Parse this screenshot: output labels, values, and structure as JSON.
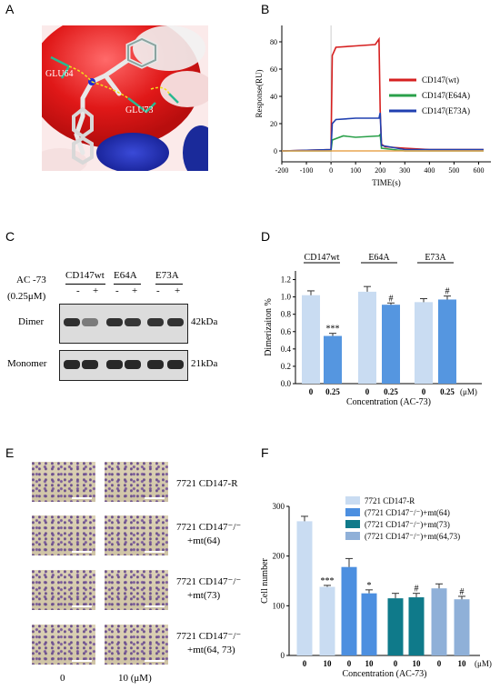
{
  "panels": {
    "a": "A",
    "b": "B",
    "c": "C",
    "d": "D",
    "e": "E",
    "f": "F"
  },
  "panel_a": {
    "labels": [
      "GLU64",
      "GLU73"
    ]
  },
  "chart_b": {
    "type": "line",
    "xlabel": "TIME(s)",
    "ylabel": "Response(RU)",
    "xlim": [
      -200,
      650
    ],
    "ylim": [
      -8,
      92
    ],
    "xticks": [
      -200,
      -100,
      0,
      100,
      200,
      300,
      400,
      500,
      600
    ],
    "yticks": [
      0,
      20,
      40,
      60,
      80
    ],
    "series": [
      {
        "name": "CD147(wt)",
        "color": "#d62020",
        "x": [
          -200,
          0,
          5,
          20,
          100,
          180,
          195,
          200,
          205,
          220,
          300,
          400,
          500,
          620
        ],
        "y": [
          0,
          1,
          70,
          76,
          77,
          78,
          82,
          30,
          5,
          3,
          2,
          1,
          1,
          1
        ]
      },
      {
        "name": "CD147(E64A)",
        "color": "#2aa04a",
        "x": [
          -200,
          0,
          5,
          50,
          100,
          195,
          200,
          205,
          300,
          400,
          500,
          620
        ],
        "y": [
          0,
          0,
          8,
          11,
          10,
          11,
          12,
          2,
          0,
          0,
          0,
          0
        ]
      },
      {
        "name": "CD147(E73A)",
        "color": "#2040b0",
        "x": [
          -200,
          0,
          5,
          20,
          100,
          195,
          200,
          205,
          300,
          400,
          500,
          620
        ],
        "y": [
          0,
          1,
          20,
          23,
          24,
          24,
          28,
          4,
          1,
          1,
          1,
          1
        ]
      },
      {
        "name": "",
        "color": "#e8a650",
        "x": [
          -200,
          0,
          200,
          620
        ],
        "y": [
          0,
          0,
          0,
          0
        ]
      }
    ]
  },
  "panel_c": {
    "treatment_label": "AC -73",
    "treatment_dose": "(0.25μM)",
    "groups": [
      "CD147wt",
      "E64A",
      "E73A"
    ],
    "signs": [
      "-",
      "+",
      "-",
      "+",
      "-",
      "+"
    ],
    "rows": [
      {
        "name": "Dimer",
        "kda": "42kDa",
        "intensity": [
          0.95,
          0.45,
          0.95,
          0.9,
          0.92,
          0.93
        ]
      },
      {
        "name": "Monomer",
        "kda": "21kDa",
        "intensity": [
          1,
          1,
          1,
          1,
          1,
          1
        ]
      }
    ]
  },
  "chart_d": {
    "type": "bar",
    "ylabel": "Dimerizaiton %",
    "xlabel": "Concentration (AC-73)",
    "ylim": [
      0,
      1.3
    ],
    "yticks": [
      "0.0",
      "0.2",
      "0.4",
      "0.6",
      "0.8",
      "1.0",
      "1.2"
    ],
    "groups": [
      "CD147wt",
      "E64A",
      "E73A"
    ],
    "categories": [
      "0",
      "0.25",
      "0",
      "0.25",
      "0",
      "0.25"
    ],
    "unit": "(μM)",
    "values": [
      1.02,
      0.55,
      1.06,
      0.91,
      0.94,
      0.97
    ],
    "errors": [
      0.05,
      0.03,
      0.06,
      0.02,
      0.04,
      0.04
    ],
    "marks": [
      "",
      "***",
      "",
      "#",
      "",
      "#"
    ],
    "colors": [
      "#c9dcf2",
      "#5596e0",
      "#c9dcf2",
      "#5596e0",
      "#c9dcf2",
      "#5596e0"
    ]
  },
  "panel_e": {
    "rows": [
      {
        "line1": "7721 CD147-R",
        "line2": ""
      },
      {
        "line1": "7721 CD147⁻/⁻",
        "line2": "+mt(64)"
      },
      {
        "line1": "7721 CD147⁻/⁻",
        "line2": "+mt(73)"
      },
      {
        "line1": "7721 CD147⁻/⁻",
        "line2": "+mt(64, 73)"
      }
    ],
    "xlabels": [
      "0",
      "10  (μM)"
    ]
  },
  "chart_f": {
    "type": "bar",
    "ylabel": "Cell number",
    "xlabel": "Concentration (AC-73)",
    "ylim": [
      0,
      300
    ],
    "yticks": [
      0,
      100,
      200,
      300
    ],
    "categories": [
      "0",
      "10",
      "0",
      "10",
      "0",
      "10",
      "0",
      "10"
    ],
    "unit": "(μM)",
    "values": [
      270,
      138,
      178,
      125,
      115,
      117,
      135,
      113
    ],
    "errors": [
      10,
      3,
      17,
      7,
      10,
      8,
      9,
      6
    ],
    "marks": [
      "",
      "***",
      "",
      "*",
      "",
      "#",
      "",
      "#"
    ],
    "colors": [
      "#c9dcf2",
      "#c9dcf2",
      "#4c8fe0",
      "#4c8fe0",
      "#0f7a8a",
      "#0f7a8a",
      "#8fb0d8",
      "#8fb0d8"
    ],
    "legend": [
      {
        "label": "7721 CD147-R",
        "color": "#c9dcf2"
      },
      {
        "label": "(7721 CD147⁻/⁻)+mt(64)",
        "color": "#4c8fe0"
      },
      {
        "label": "(7721 CD147⁻/⁻)+mt(73)",
        "color": "#0f7a8a"
      },
      {
        "label": "(7721 CD147⁻/⁻)+mt(64,73)",
        "color": "#8fb0d8"
      }
    ]
  }
}
